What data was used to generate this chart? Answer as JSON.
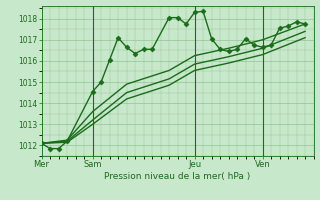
{
  "background_color": "#c8e8cc",
  "grid_color": "#88bb88",
  "line_color": "#1a6b1a",
  "title": "Pression niveau de la mer( hPa )",
  "x_tick_labels": [
    "Mer",
    "Sam",
    "Jeu",
    "Ven"
  ],
  "x_tick_positions": [
    0,
    3,
    9,
    13
  ],
  "xlim": [
    0,
    16
  ],
  "ylim": [
    1011.5,
    1018.6
  ],
  "yticks": [
    1012,
    1013,
    1014,
    1015,
    1016,
    1017,
    1018
  ],
  "series": [
    {
      "x": [
        0,
        0.5,
        1.0,
        1.5,
        3.0,
        3.5,
        4.0,
        4.5,
        5.0,
        5.5,
        6.0,
        6.5,
        7.5,
        8.0,
        8.5,
        9.0,
        9.5,
        10.0,
        10.5,
        11.0,
        11.5,
        12.0,
        12.5,
        13.0,
        13.5,
        14.0,
        14.5,
        15.0,
        15.5
      ],
      "y": [
        1012.1,
        1011.85,
        1011.85,
        1012.2,
        1014.55,
        1015.0,
        1016.05,
        1017.1,
        1016.65,
        1016.35,
        1016.55,
        1016.55,
        1018.05,
        1018.05,
        1017.75,
        1018.3,
        1018.35,
        1017.05,
        1016.55,
        1016.45,
        1016.55,
        1017.05,
        1016.75,
        1016.65,
        1016.75,
        1017.55,
        1017.65,
        1017.85,
        1017.75
      ],
      "style": "-",
      "marker": "D",
      "markersize": 2.5,
      "linewidth": 1.0
    },
    {
      "x": [
        0,
        1.5,
        3.0,
        5.0,
        7.5,
        9.0,
        11.0,
        13.0,
        15.5
      ],
      "y": [
        1012.1,
        1012.25,
        1013.6,
        1014.9,
        1015.55,
        1016.25,
        1016.6,
        1017.0,
        1017.75
      ],
      "style": "-",
      "marker": null,
      "markersize": 0,
      "linewidth": 1.0
    },
    {
      "x": [
        0,
        1.5,
        3.0,
        5.0,
        7.5,
        9.0,
        11.0,
        13.0,
        15.5
      ],
      "y": [
        1012.1,
        1012.2,
        1013.2,
        1014.5,
        1015.15,
        1015.85,
        1016.2,
        1016.6,
        1017.4
      ],
      "style": "-",
      "marker": null,
      "markersize": 0,
      "linewidth": 1.0
    },
    {
      "x": [
        0,
        1.5,
        3.0,
        5.0,
        7.5,
        9.0,
        11.0,
        13.0,
        15.5
      ],
      "y": [
        1012.1,
        1012.15,
        1013.0,
        1014.2,
        1014.85,
        1015.55,
        1015.9,
        1016.3,
        1017.1
      ],
      "style": "-",
      "marker": null,
      "markersize": 0,
      "linewidth": 1.0
    }
  ]
}
